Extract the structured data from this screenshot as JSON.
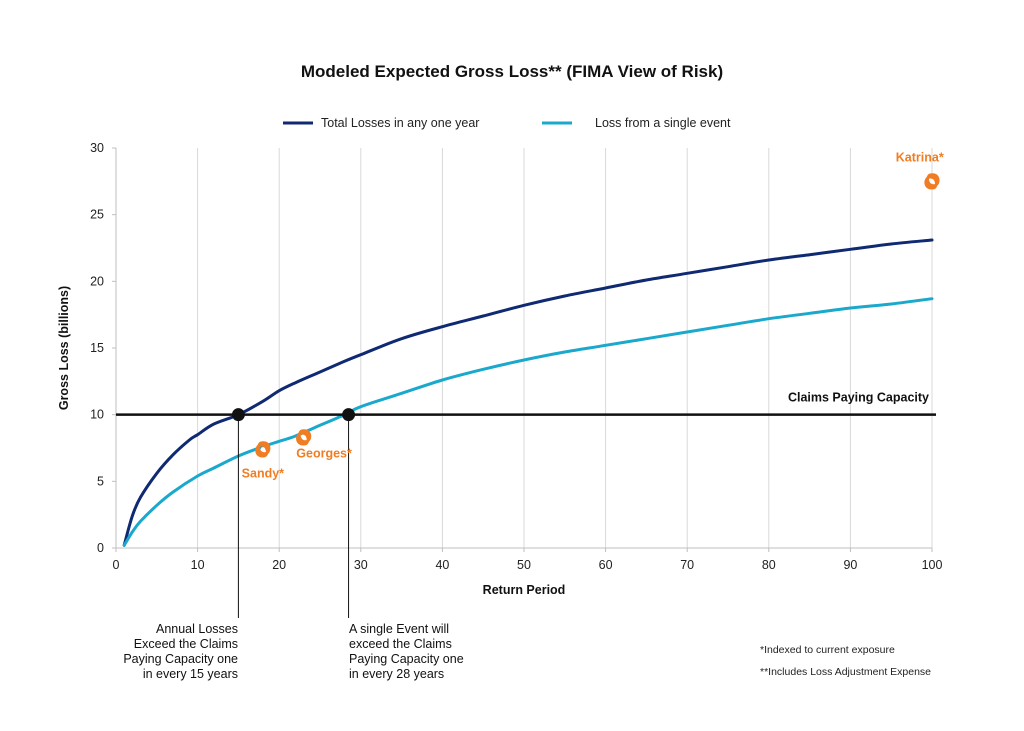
{
  "colors": {
    "total": "#0f2a72",
    "single": "#1aa8cc",
    "capacity": "#111111",
    "storm": "#f07d23",
    "grid": "#d9d9d9"
  },
  "chart_data": {
    "type": "line",
    "title": "Modeled Expected Gross Loss** (FIMA View of Risk)",
    "xlabel": "Return Period",
    "ylabel": "Gross Loss (billions)",
    "xlim": [
      0,
      100
    ],
    "ylim": [
      0,
      30
    ],
    "xticks": [
      0,
      10,
      20,
      30,
      40,
      50,
      60,
      70,
      80,
      90,
      100
    ],
    "yticks": [
      0,
      5,
      10,
      15,
      20,
      25,
      30
    ],
    "grid": "vertical",
    "legend_position": "top-center",
    "series": [
      {
        "name": "Total Losses in any one year",
        "color_key": "total",
        "x": [
          1,
          2,
          3,
          5,
          7,
          9,
          10,
          12,
          15,
          18,
          20,
          22,
          25,
          28,
          30,
          35,
          40,
          45,
          50,
          55,
          60,
          65,
          70,
          75,
          80,
          85,
          90,
          95,
          100
        ],
        "y": [
          0.2,
          2.4,
          3.8,
          5.6,
          7.0,
          8.1,
          8.5,
          9.3,
          10.0,
          11.0,
          11.8,
          12.4,
          13.2,
          14.0,
          14.5,
          15.7,
          16.6,
          17.4,
          18.2,
          18.9,
          19.5,
          20.1,
          20.6,
          21.1,
          21.6,
          22.0,
          22.4,
          22.8,
          23.1
        ]
      },
      {
        "name": "Loss from a single event",
        "color_key": "single",
        "x": [
          1,
          2,
          3,
          5,
          7,
          10,
          12,
          15,
          18,
          20,
          22,
          25,
          28,
          30,
          35,
          40,
          45,
          50,
          55,
          60,
          65,
          70,
          75,
          80,
          85,
          90,
          95,
          100
        ],
        "y": [
          0.2,
          1.2,
          2.0,
          3.2,
          4.2,
          5.4,
          6.0,
          6.9,
          7.6,
          8.0,
          8.4,
          9.2,
          10.0,
          10.6,
          11.6,
          12.6,
          13.4,
          14.1,
          14.7,
          15.2,
          15.7,
          16.2,
          16.7,
          17.2,
          17.6,
          18.0,
          18.3,
          18.7
        ]
      }
    ],
    "capacity": {
      "value": 10,
      "label": "Claims Paying Capacity"
    },
    "crossings": [
      {
        "x": 15,
        "y": 10
      },
      {
        "x": 28.5,
        "y": 10
      }
    ],
    "storms": [
      {
        "name": "Sandy*",
        "x": 18,
        "y": 7.4,
        "label_x": 18,
        "label_y": 5.3
      },
      {
        "name": "Georges*",
        "x": 23,
        "y": 8.3,
        "label_x": 25.5,
        "label_y": 6.8
      },
      {
        "name": "Katrina*",
        "x": 100,
        "y": 27.5,
        "label_x": 98.5,
        "label_y": 29
      }
    ]
  },
  "notes": {
    "annual": "Annual Losses\nExceed the Claims\nPaying Capacity one\nin every 15 years",
    "single": "A single Event will\nexceed the Claims\nPaying Capacity one\nin every 28 years"
  },
  "footnotes": {
    "indexed": "*Indexed to current exposure",
    "includes": "**Includes Loss Adjustment Expense"
  }
}
